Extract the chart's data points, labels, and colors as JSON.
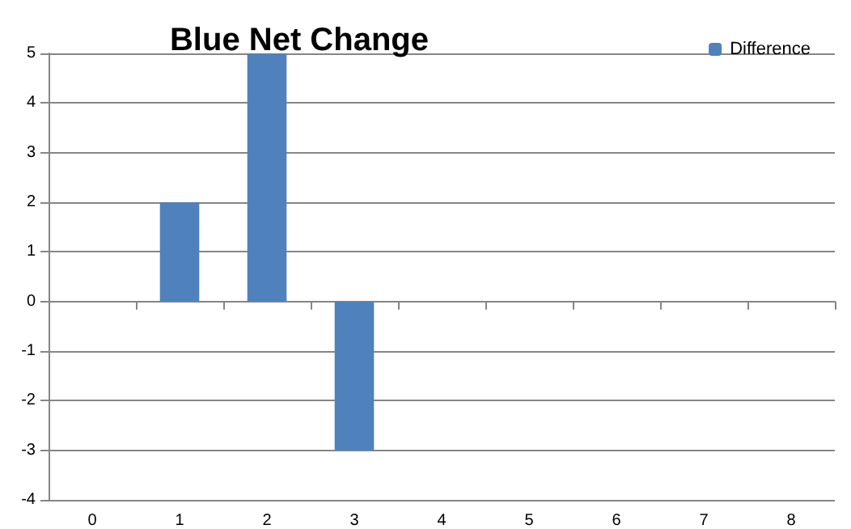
{
  "chart_data": {
    "type": "bar",
    "title": "Blue Net Change",
    "categories": [
      "0",
      "1",
      "2",
      "3",
      "4",
      "5",
      "6",
      "7",
      "8"
    ],
    "series": [
      {
        "name": "Difference",
        "color": "#4f81bd",
        "values": [
          0,
          2,
          5,
          -3,
          0,
          0,
          0,
          0,
          0
        ]
      }
    ],
    "ylim": [
      -4,
      5
    ],
    "yticks": [
      -4,
      -3,
      -2,
      -1,
      0,
      1,
      2,
      3,
      4,
      5
    ],
    "grid": "y",
    "legend": "top right"
  }
}
